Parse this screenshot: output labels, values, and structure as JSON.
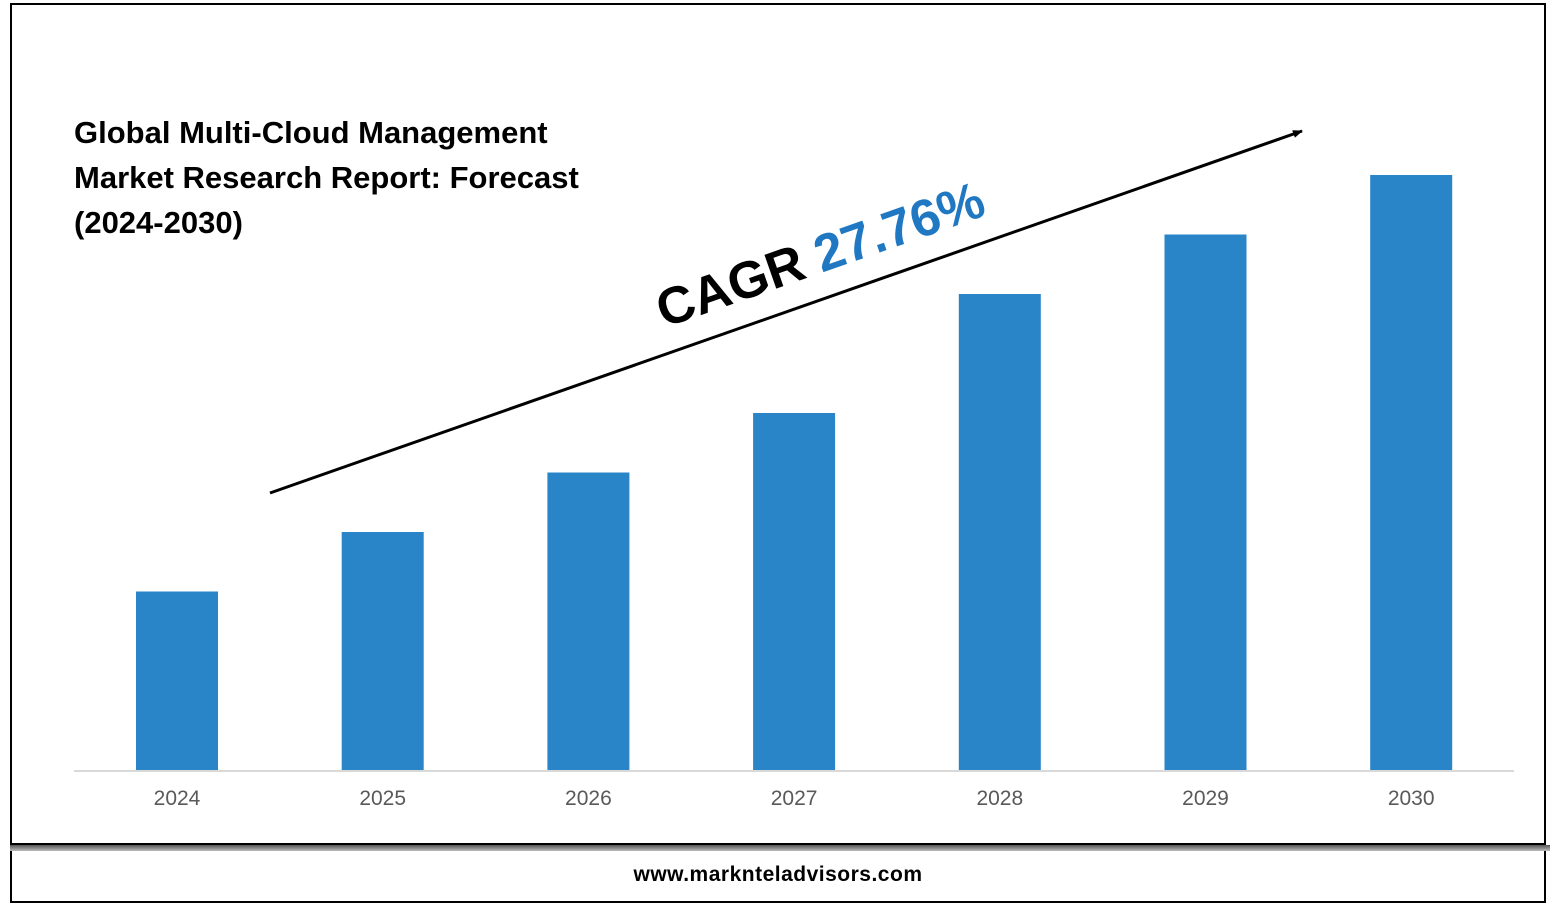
{
  "footer": {
    "url": "www.marknteladvisors.com"
  },
  "colors": {
    "bar": "#2a84c8",
    "cagr_value": "#1f78c1",
    "axis": "#d9d9d9"
  },
  "chart_data": {
    "type": "bar",
    "title": "Global Multi-Cloud Management Market Research Report: Forecast (2024-2030)",
    "categories": [
      "2024",
      "2025",
      "2026",
      "2027",
      "2028",
      "2029",
      "2030"
    ],
    "values": [
      30,
      40,
      50,
      60,
      80,
      90,
      100
    ],
    "ylim": [
      0,
      100
    ],
    "xlabel": "",
    "ylabel": "",
    "grid": false,
    "annotation": {
      "label": "CAGR",
      "value": "27.76%"
    }
  }
}
